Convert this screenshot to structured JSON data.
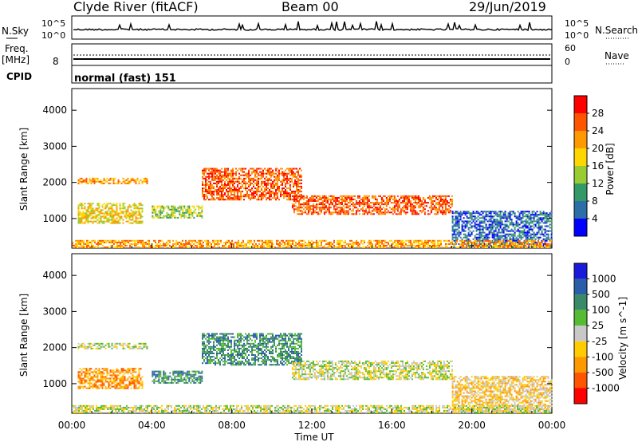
{
  "header": {
    "station": "Clyde River (fitACF)",
    "beam": "Beam 00",
    "date": "29/Jun/2019"
  },
  "noise_panel": {
    "left_label": "N.Sky",
    "right_label": "N.Search",
    "left_ticks": [
      "10^5",
      "10^0"
    ],
    "right_ticks": [
      "10^5",
      "10^0"
    ]
  },
  "freq_panel": {
    "left_label_1": "Freq.",
    "left_label_2": "[MHz]",
    "left_tick": "8",
    "right_label": "Nave",
    "right_ticks": [
      "60",
      "0"
    ]
  },
  "cpid_panel": {
    "label": "CPID",
    "text": "normal (fast) 151"
  },
  "colors": {
    "missing": "#ffffff",
    "axis": "#000000",
    "background_band": "#f8f8f8"
  },
  "chart_data": [
    {
      "type": "heatmap",
      "title": "",
      "xlabel": "Time UT",
      "ylabel": "Slant Range [km]",
      "x_ticks": [
        "00:00",
        "04:00",
        "08:00",
        "12:00",
        "16:00",
        "20:00",
        "00:00"
      ],
      "y_ticks": [
        "1000",
        "2000",
        "3000",
        "4000"
      ],
      "xlim": [
        0,
        24
      ],
      "ylim": [
        180,
        4600
      ],
      "colorbar": {
        "label": "Power [dB]",
        "ticks": [
          "28",
          "24",
          "20",
          "16",
          "12",
          "8",
          "4"
        ],
        "colors": [
          "#ff0000",
          "#ff5500",
          "#ff9900",
          "#ffd700",
          "#99cc33",
          "#339966",
          "#2c6fa8",
          "#0000ff"
        ]
      },
      "features": [
        {
          "start_h": 0.3,
          "end_h": 3.8,
          "range_min_km": 1950,
          "range_max_km": 2100,
          "level": 5
        },
        {
          "start_h": 0.3,
          "end_h": 3.5,
          "range_min_km": 850,
          "range_max_km": 1400,
          "level": 4
        },
        {
          "start_h": 4.0,
          "end_h": 6.5,
          "range_min_km": 1000,
          "range_max_km": 1350,
          "level": 3
        },
        {
          "start_h": 6.5,
          "end_h": 11.5,
          "range_min_km": 1500,
          "range_max_km": 2400,
          "level": 6
        },
        {
          "start_h": 11.0,
          "end_h": 19.0,
          "range_min_km": 1100,
          "range_max_km": 1600,
          "level": 6
        },
        {
          "start_h": 19.0,
          "end_h": 24.0,
          "range_min_km": 180,
          "range_max_km": 1200,
          "level": 1
        },
        {
          "start_h": 0.0,
          "end_h": 24.0,
          "range_min_km": 180,
          "range_max_km": 400,
          "level": 5
        }
      ]
    },
    {
      "type": "heatmap",
      "title": "",
      "xlabel": "Time UT",
      "ylabel": "Slant Range [km]",
      "x_ticks": [
        "00:00",
        "04:00",
        "08:00",
        "12:00",
        "16:00",
        "20:00",
        "00:00"
      ],
      "y_ticks": [
        "1000",
        "2000",
        "3000",
        "4000"
      ],
      "xlim": [
        0,
        24
      ],
      "ylim": [
        180,
        4600
      ],
      "colorbar": {
        "label": "Velocity [m s^-1]",
        "ticks": [
          "1000",
          "500",
          "100",
          "25",
          "-25",
          "-100",
          "-500",
          "-1000"
        ],
        "colors": [
          "#1a1adb",
          "#2a5ea8",
          "#3a8a6a",
          "#55bb33",
          "#c8c8c8",
          "#ffcc00",
          "#ff9900",
          "#ff5500",
          "#ff0000"
        ]
      },
      "features": [
        {
          "start_h": 0.3,
          "end_h": 3.8,
          "range_min_km": 1950,
          "range_max_km": 2100,
          "level": 4
        },
        {
          "start_h": 0.3,
          "end_h": 3.5,
          "range_min_km": 850,
          "range_max_km": 1400,
          "level": 2
        },
        {
          "start_h": 4.0,
          "end_h": 6.5,
          "range_min_km": 1000,
          "range_max_km": 1350,
          "level": 6
        },
        {
          "start_h": 6.5,
          "end_h": 11.5,
          "range_min_km": 1500,
          "range_max_km": 2400,
          "level": 6
        },
        {
          "start_h": 11.0,
          "end_h": 19.0,
          "range_min_km": 1100,
          "range_max_km": 1600,
          "level": 4
        },
        {
          "start_h": 19.0,
          "end_h": 24.0,
          "range_min_km": 180,
          "range_max_km": 1200,
          "level": 3
        },
        {
          "start_h": 0.0,
          "end_h": 24.0,
          "range_min_km": 180,
          "range_max_km": 400,
          "level": 4
        }
      ]
    }
  ]
}
